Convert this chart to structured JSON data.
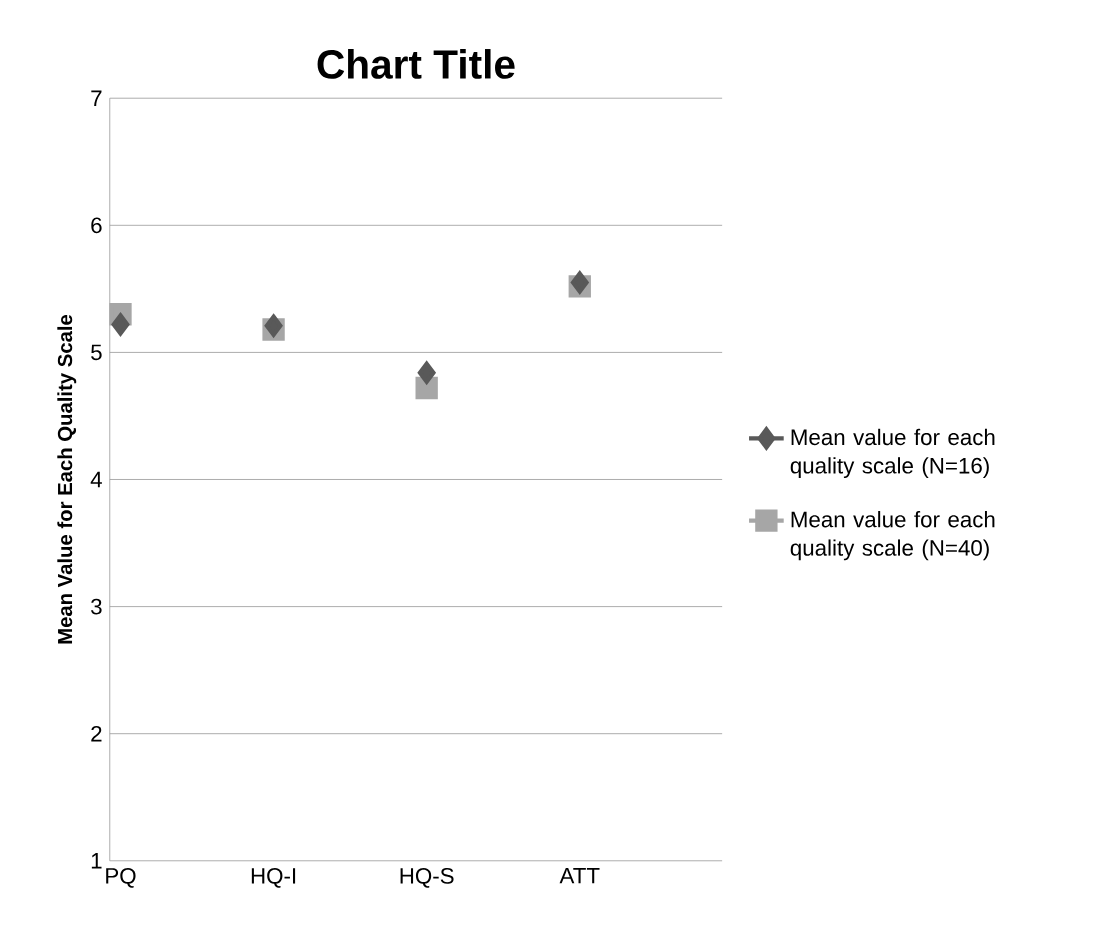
{
  "chart_data": {
    "type": "scatter",
    "title": "Chart Title",
    "ylabel": "Mean Value for Each Quality Scale",
    "categories": [
      "PQ",
      "HQ-I",
      "HQ-S",
      "ATT"
    ],
    "series": [
      {
        "name": "Mean value for each quality scale (N=16)",
        "color": "#595959",
        "marker": "diamond",
        "values": [
          5.22,
          5.21,
          4.84,
          5.55
        ]
      },
      {
        "name": "Mean value for each quality scale (N=40)",
        "color": "#a6a6a6",
        "marker": "square",
        "values": [
          5.3,
          5.18,
          4.72,
          5.52
        ]
      }
    ],
    "ylim": [
      1,
      7
    ],
    "yticks": [
      1,
      2,
      3,
      4,
      5,
      6,
      7
    ],
    "grid": "y",
    "legend": "right"
  }
}
